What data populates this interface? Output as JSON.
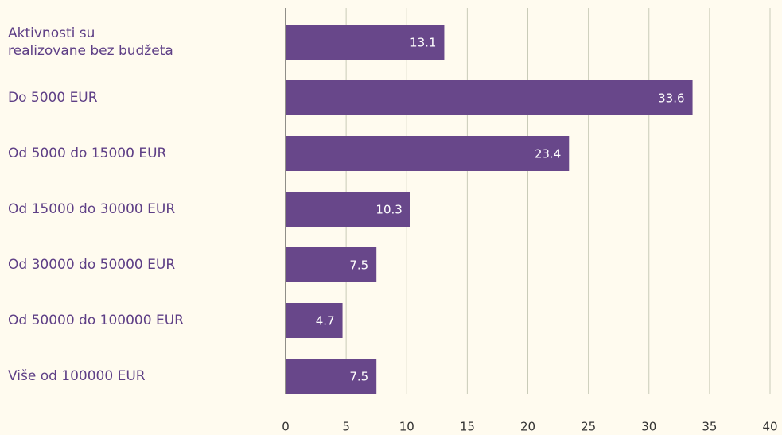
{
  "chart_data": {
    "type": "bar",
    "orientation": "horizontal",
    "categories": [
      "Aktivnosti su\nrealizovane bez budžeta",
      "Do 5000 EUR",
      "Od 5000 do 15000 EUR",
      "Od 15000 do 30000 EUR",
      "Od 30000 do 50000 EUR",
      "Od 50000 do 100000 EUR",
      "Više od 100000 EUR"
    ],
    "values": [
      13.1,
      33.6,
      23.4,
      10.3,
      7.5,
      4.7,
      7.5
    ],
    "color": "#68478a",
    "xlim": [
      0,
      40
    ],
    "xticks": [
      0,
      5,
      10,
      15,
      20,
      25,
      30,
      35,
      40
    ],
    "grid": true
  }
}
